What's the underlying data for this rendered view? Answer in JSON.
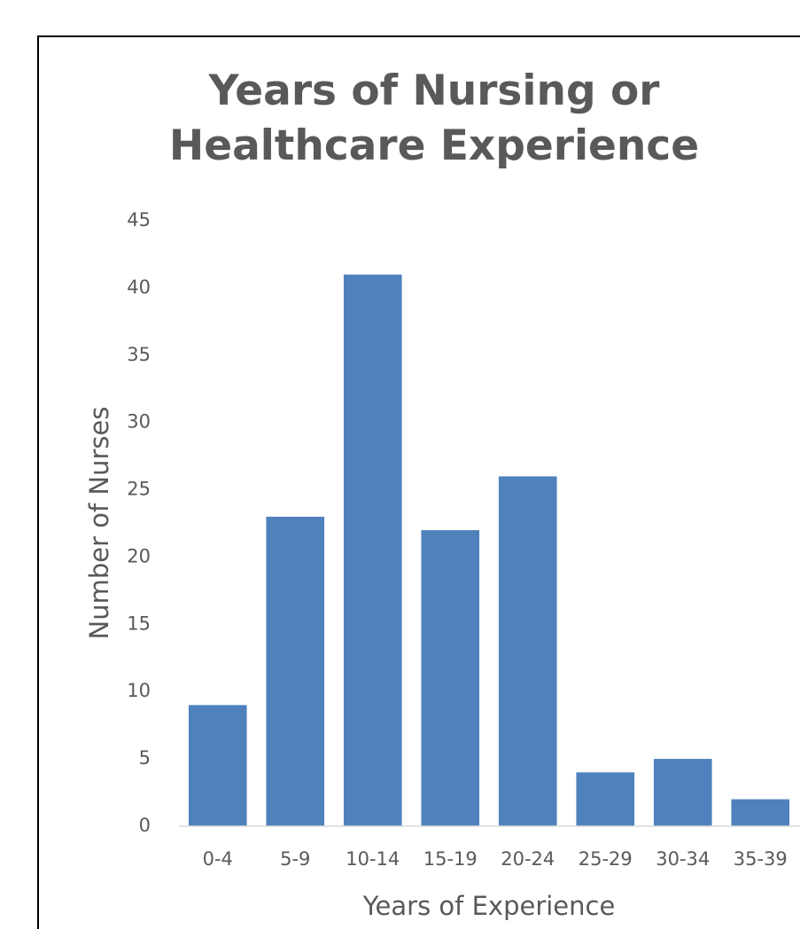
{
  "chart_data": {
    "type": "bar",
    "title": "Years of Nursing or Healthcare Experience",
    "x_label": "Years of Experience",
    "y_label": "Number of Nurses",
    "categories": [
      "0-4",
      "5-9",
      "10-14",
      "15-19",
      "20-24",
      "25-29",
      "30-34",
      "35-39"
    ],
    "values": [
      9,
      23,
      41,
      22,
      26,
      4,
      5,
      2
    ],
    "color": "#4f81bd",
    "ylim": [
      0,
      45
    ],
    "yticks": [
      0,
      5,
      10,
      15,
      20,
      25,
      30,
      35,
      40,
      45
    ],
    "grid": false
  }
}
